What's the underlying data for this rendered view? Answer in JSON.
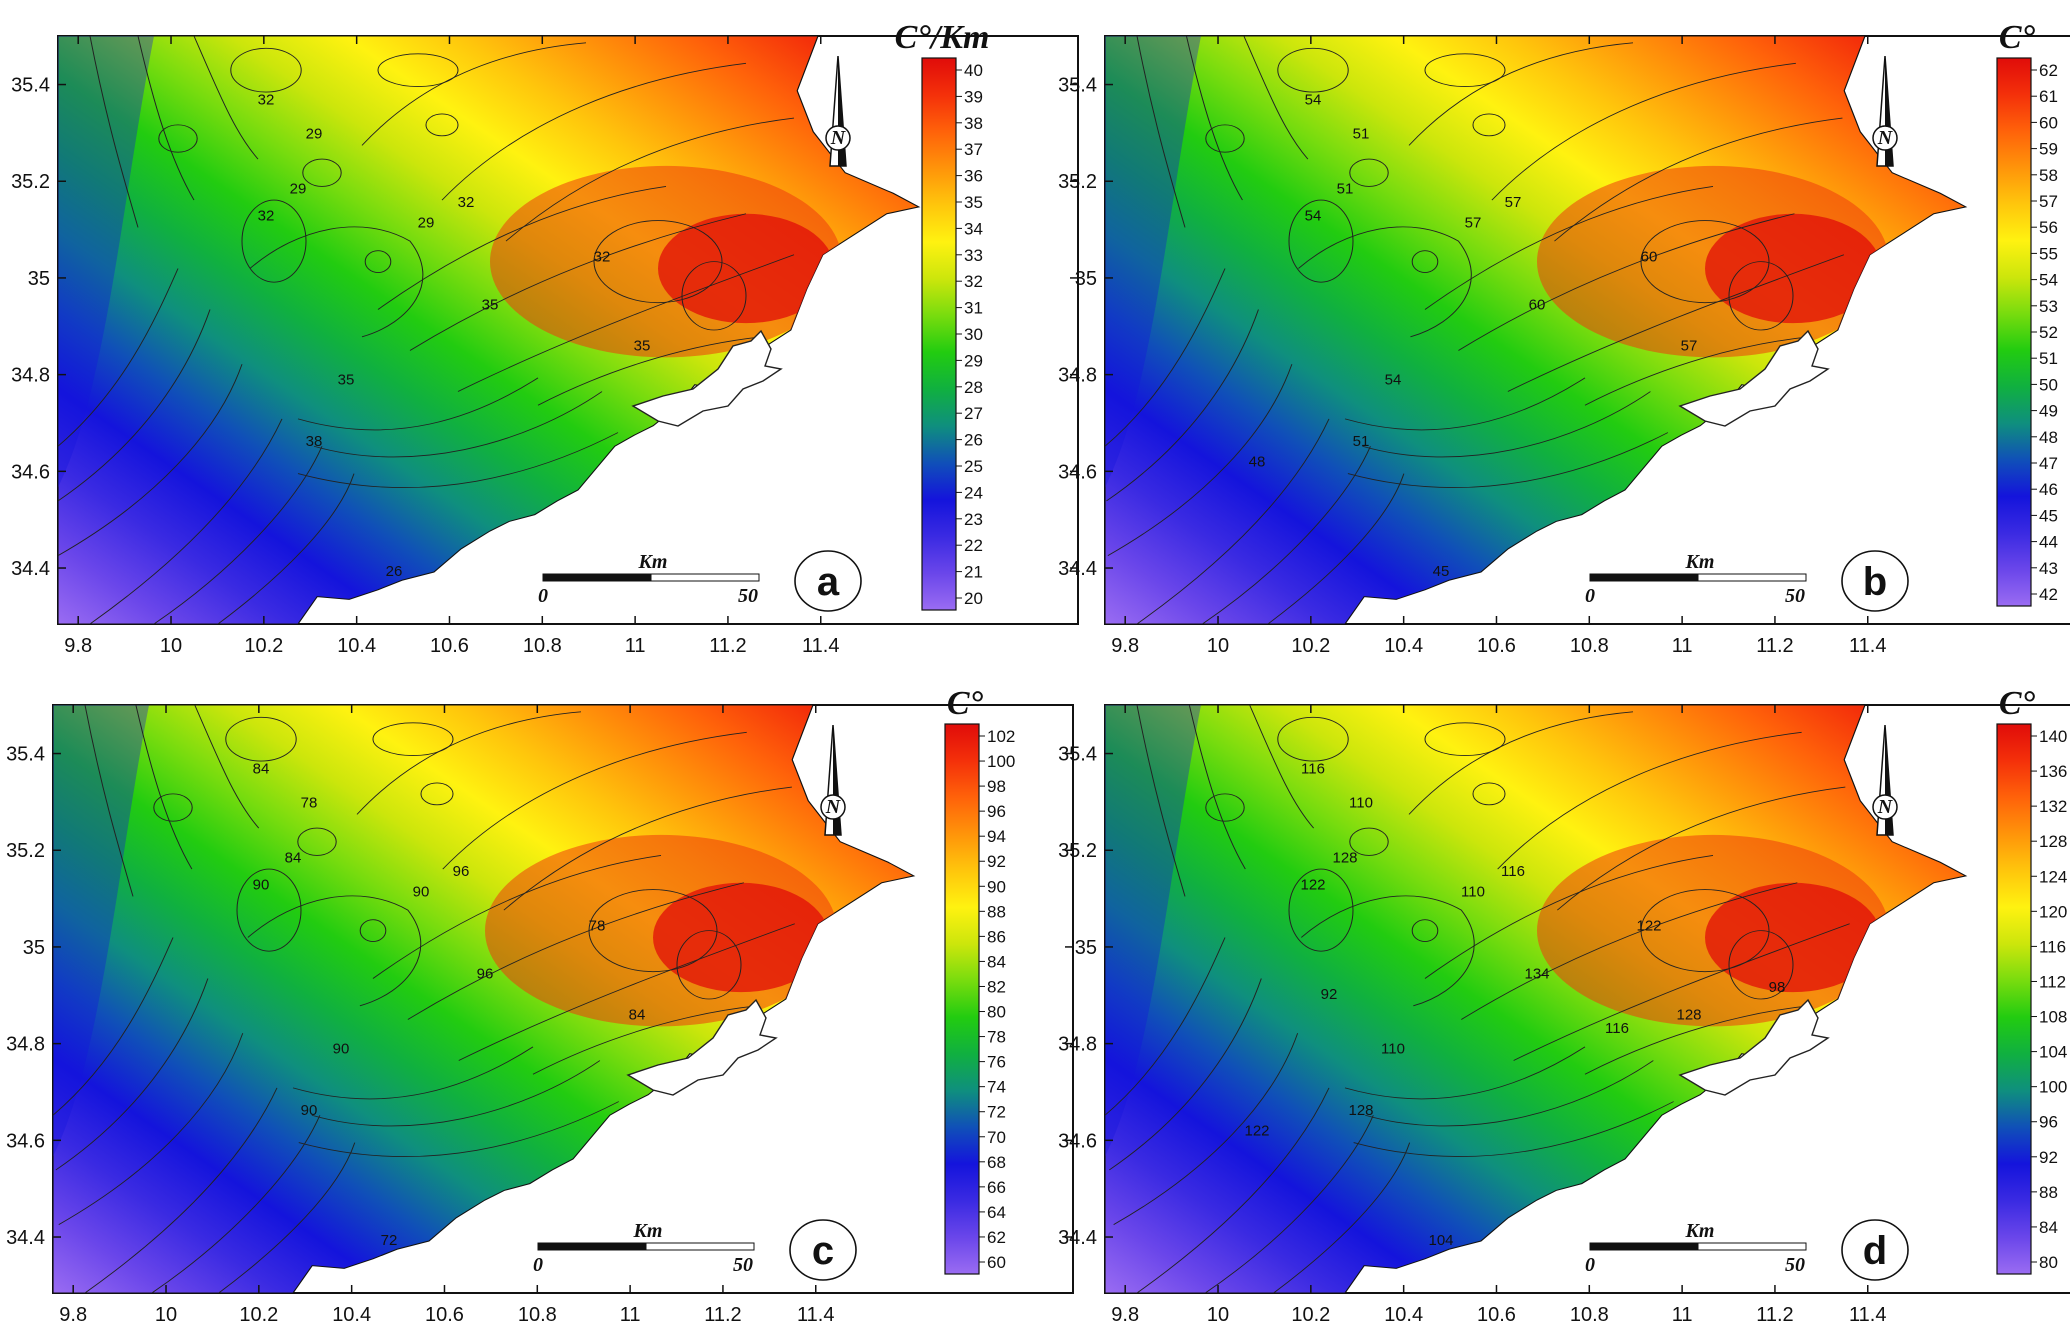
{
  "colors": {
    "ramp": [
      "#9a6cf2",
      "#6a46ea",
      "#3a2ae2",
      "#1414dc",
      "#1050b8",
      "#0f8f7e",
      "#10b040",
      "#22cc10",
      "#78dc0e",
      "#cce60c",
      "#fff210",
      "#ffc60c",
      "#ff940a",
      "#ff620a",
      "#f4300a",
      "#e00c0a"
    ],
    "background": "#ffffff",
    "contour": "#222222"
  },
  "axes": {
    "x_ticks": [
      "9.8",
      "10",
      "10.2",
      "10.4",
      "10.6",
      "10.8",
      "11",
      "11.2",
      "11.4"
    ],
    "y_ticks": [
      "35.4",
      "35.2",
      "35",
      "34.8",
      "34.6",
      "34.4"
    ]
  },
  "scale_bar": {
    "unit": "Km",
    "start": "0",
    "end": "50"
  },
  "north_arrow": {
    "letter": "N",
    "icon": "north-arrow-icon"
  },
  "panels": [
    {
      "letter": "a",
      "unit": "C°/Km",
      "colorbar_labels": [
        "40",
        "39",
        "38",
        "37",
        "36",
        "35",
        "34",
        "33",
        "32",
        "31",
        "30",
        "29",
        "28",
        "27",
        "26",
        "25",
        "24",
        "23",
        "22",
        "21",
        "20"
      ],
      "contour_labels": [
        "32",
        "29",
        "29",
        "32",
        "29",
        "32",
        "35",
        "32",
        "35",
        "38",
        "35",
        "26"
      ]
    },
    {
      "letter": "b",
      "unit": "C°",
      "colorbar_labels": [
        "62",
        "61",
        "60",
        "59",
        "58",
        "57",
        "56",
        "55",
        "54",
        "53",
        "52",
        "51",
        "50",
        "49",
        "48",
        "47",
        "46",
        "45",
        "44",
        "43",
        "42"
      ],
      "contour_labels": [
        "54",
        "51",
        "51",
        "54",
        "57",
        "57",
        "60",
        "60",
        "57",
        "51",
        "54",
        "45",
        "48"
      ]
    },
    {
      "letter": "c",
      "unit": "C°",
      "colorbar_labels": [
        "102",
        "100",
        "98",
        "96",
        "94",
        "92",
        "90",
        "88",
        "86",
        "84",
        "82",
        "80",
        "78",
        "76",
        "74",
        "72",
        "70",
        "68",
        "66",
        "64",
        "62",
        "60"
      ],
      "contour_labels": [
        "84",
        "78",
        "84",
        "90",
        "90",
        "96",
        "96",
        "78",
        "84",
        "90",
        "90",
        "72"
      ]
    },
    {
      "letter": "d",
      "unit": "C°",
      "colorbar_labels": [
        "140",
        "136",
        "132",
        "128",
        "124",
        "120",
        "116",
        "112",
        "108",
        "104",
        "100",
        "96",
        "92",
        "88",
        "84",
        "80"
      ],
      "contour_labels": [
        "116",
        "110",
        "128",
        "122",
        "110",
        "116",
        "134",
        "122",
        "128",
        "128",
        "110",
        "104",
        "122",
        "92",
        "98",
        "116"
      ]
    }
  ]
}
